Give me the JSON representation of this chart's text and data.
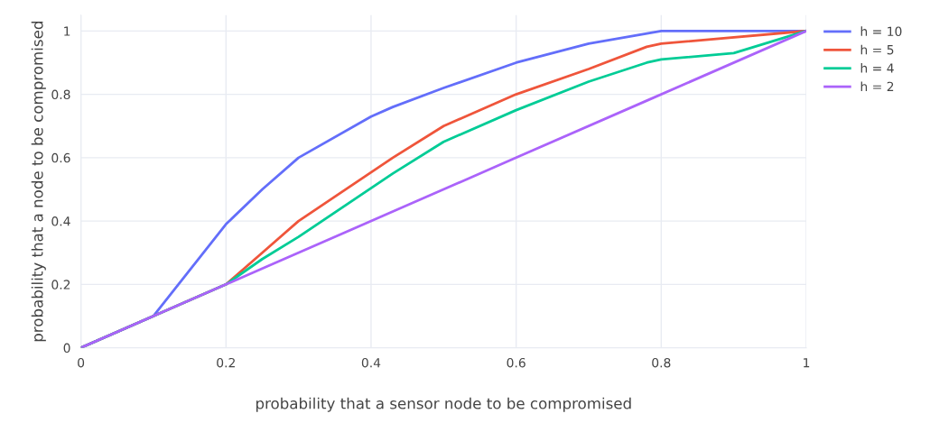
{
  "chart_data": {
    "type": "line",
    "xlabel": "probability that a sensor node to be compromised",
    "ylabel": "probability that a node to be compromised",
    "xlim": [
      0,
      1
    ],
    "ylim": [
      0,
      1.05
    ],
    "xticks": [
      0,
      0.2,
      0.4,
      0.6,
      0.8,
      1
    ],
    "yticks": [
      0,
      0.2,
      0.4,
      0.6,
      0.8,
      1
    ],
    "grid": true,
    "legend": "top right",
    "series": [
      {
        "name": "h = 10",
        "color": "#636efa",
        "x": [
          0,
          0.1,
          0.2,
          0.25,
          0.3,
          0.4,
          0.43,
          0.5,
          0.6,
          0.7,
          0.8,
          1
        ],
        "values": [
          0,
          0.1,
          0.39,
          0.5,
          0.6,
          0.73,
          0.76,
          0.82,
          0.9,
          0.96,
          1,
          1
        ]
      },
      {
        "name": "h = 5",
        "color": "#ef553b",
        "x": [
          0,
          0.2,
          0.25,
          0.3,
          0.43,
          0.5,
          0.6,
          0.7,
          0.78,
          0.8,
          1
        ],
        "values": [
          0,
          0.2,
          0.3,
          0.4,
          0.6,
          0.7,
          0.8,
          0.88,
          0.95,
          0.96,
          1
        ]
      },
      {
        "name": "h = 4",
        "color": "#00cc96",
        "x": [
          0,
          0.2,
          0.25,
          0.3,
          0.43,
          0.5,
          0.6,
          0.7,
          0.78,
          0.8,
          0.9,
          1
        ],
        "values": [
          0,
          0.2,
          0.28,
          0.35,
          0.55,
          0.65,
          0.75,
          0.84,
          0.9,
          0.91,
          0.93,
          1
        ]
      },
      {
        "name": "h = 2",
        "color": "#ab63fa",
        "x": [
          0,
          0.2,
          0.25,
          0.43,
          0.6,
          0.78,
          1
        ],
        "values": [
          0,
          0.2,
          0.25,
          0.43,
          0.6,
          0.78,
          1
        ]
      }
    ]
  }
}
